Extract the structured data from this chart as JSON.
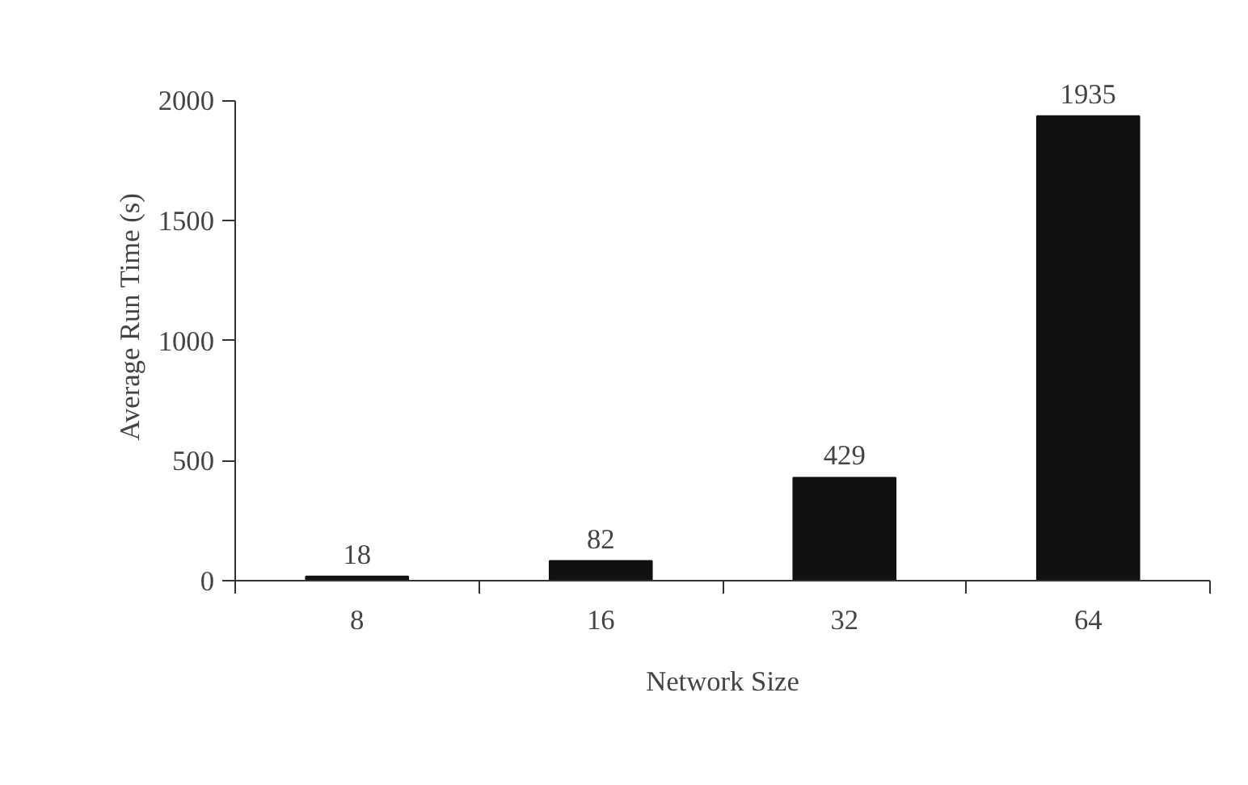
{
  "chart_data": {
    "type": "bar",
    "xlabel": "Network Size",
    "ylabel": "Average Run Time (s)",
    "categories": [
      "8",
      "16",
      "32",
      "64"
    ],
    "values": [
      18,
      82,
      429,
      1935
    ],
    "color": "#111111",
    "ylim": [
      0,
      2000
    ],
    "yticks": [
      0,
      500,
      1000,
      1500,
      2000
    ],
    "data_labels": true,
    "grid": false
  }
}
